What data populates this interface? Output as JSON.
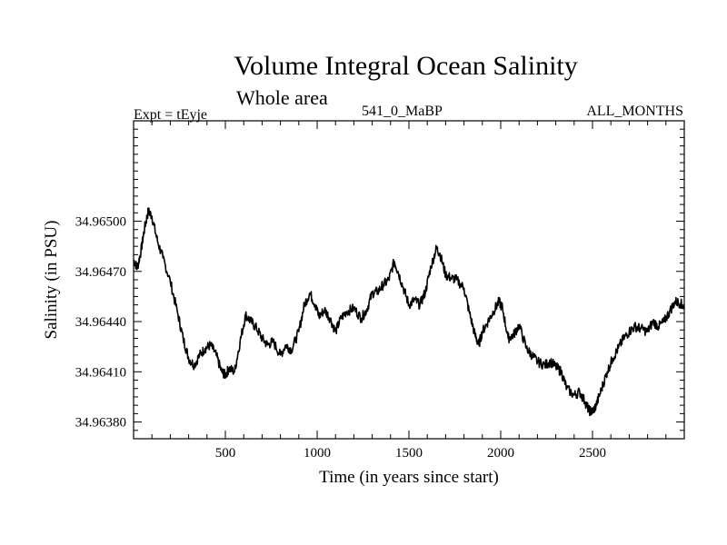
{
  "chart_data": {
    "type": "line",
    "title": "Volume Integral Ocean Salinity",
    "subtitle": "Whole area",
    "annotations": {
      "left": "Expt = tEyje",
      "center": "541_0_MaBP",
      "right": "ALL_MONTHS"
    },
    "xlabel": "Time (in years since start)",
    "ylabel": "Salinity (in PSU)",
    "xlim": [
      0,
      3000
    ],
    "ylim": [
      34.9637,
      34.9656
    ],
    "x_ticks": [
      500,
      1000,
      1500,
      2000,
      2500
    ],
    "x_tick_labels": [
      "500",
      "1000",
      "1500",
      "2000",
      "2500"
    ],
    "y_ticks": [
      34.9638,
      34.9641,
      34.9644,
      34.9647,
      34.965
    ],
    "y_tick_labels": [
      "34.96380",
      "34.96410",
      "34.96440",
      "34.96470",
      "34.96500"
    ],
    "series": [
      {
        "name": "salinity",
        "x": [
          0,
          20,
          40,
          60,
          80,
          100,
          130,
          160,
          200,
          240,
          270,
          300,
          330,
          360,
          390,
          420,
          450,
          480,
          500,
          520,
          550,
          580,
          610,
          640,
          670,
          700,
          730,
          760,
          800,
          830,
          860,
          900,
          930,
          960,
          990,
          1010,
          1040,
          1070,
          1100,
          1130,
          1160,
          1200,
          1240,
          1270,
          1300,
          1330,
          1360,
          1390,
          1420,
          1440,
          1470,
          1500,
          1530,
          1560,
          1590,
          1620,
          1650,
          1670,
          1700,
          1730,
          1760,
          1800,
          1830,
          1860,
          1880,
          1900,
          1930,
          1960,
          1990,
          2010,
          2040,
          2070,
          2100,
          2140,
          2170,
          2200,
          2240,
          2270,
          2300,
          2330,
          2360,
          2400,
          2430,
          2460,
          2480,
          2500,
          2520,
          2550,
          2580,
          2610,
          2640,
          2670,
          2700,
          2730,
          2760,
          2800,
          2830,
          2860,
          2890,
          2920,
          2950,
          2980,
          3000
        ],
        "values": [
          34.96477,
          34.96472,
          34.96482,
          34.96496,
          34.96506,
          34.96503,
          34.96488,
          34.96478,
          34.96464,
          34.96445,
          34.9643,
          34.96418,
          34.96414,
          34.9642,
          34.96424,
          34.96426,
          34.9642,
          34.9641,
          34.96408,
          34.96412,
          34.9641,
          34.96428,
          34.96444,
          34.9644,
          34.96436,
          34.9643,
          34.96426,
          34.96428,
          34.9642,
          34.96426,
          34.96423,
          34.96434,
          34.9645,
          34.96457,
          34.9645,
          34.96443,
          34.96447,
          34.96442,
          34.96434,
          34.96442,
          34.96446,
          34.96448,
          34.96442,
          34.96447,
          34.96457,
          34.96458,
          34.96462,
          34.96465,
          34.96476,
          34.9647,
          34.9646,
          34.9645,
          34.96453,
          34.9645,
          34.96458,
          34.96473,
          34.96484,
          34.9648,
          34.96468,
          34.96466,
          34.96465,
          34.9646,
          34.96445,
          34.96432,
          34.96426,
          34.96434,
          34.9644,
          34.96446,
          34.96452,
          34.96448,
          34.9643,
          34.96432,
          34.96438,
          34.96424,
          34.9642,
          34.96416,
          34.96414,
          34.96416,
          34.96413,
          34.9641,
          34.964,
          34.96396,
          34.96398,
          34.96392,
          34.96387,
          34.96386,
          34.9639,
          34.964,
          34.9641,
          34.96418,
          34.96424,
          34.9643,
          34.96434,
          34.96437,
          34.96436,
          34.96434,
          34.9644,
          34.96437,
          34.9644,
          34.96446,
          34.96452,
          34.96451,
          34.96448
        ]
      }
    ]
  }
}
